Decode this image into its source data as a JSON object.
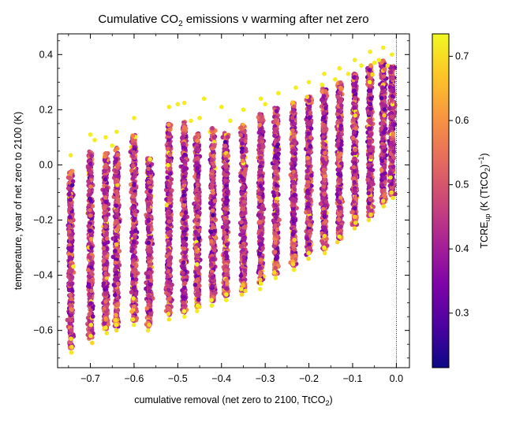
{
  "chart_data": {
    "type": "scatter",
    "title": "Cumulative CO",
    "title_sub": "2",
    "title_rest": " emissions v warming after net zero",
    "xlabel": "cumulative removal (net zero to 2100, TtCO",
    "xlabel_sub": "2",
    "xlabel_end": ")",
    "ylabel": "temperature, year of net zero to 2100 (K)",
    "xlim": [
      -0.775,
      0.03
    ],
    "ylim": [
      -0.735,
      0.475
    ],
    "x_ticks": [
      -0.7,
      -0.6,
      -0.5,
      -0.4,
      -0.3,
      -0.2,
      -0.1,
      0.0
    ],
    "x_tick_labels": [
      "−0.7",
      "−0.6",
      "−0.5",
      "−0.4",
      "−0.3",
      "−0.2",
      "−0.1",
      "0.0"
    ],
    "y_ticks": [
      -0.6,
      -0.4,
      -0.2,
      0.0,
      0.2,
      0.4
    ],
    "y_tick_labels": [
      "−0.6",
      "−0.4",
      "−0.2",
      "0.0",
      "0.2",
      "0.4"
    ],
    "reference_line_x": 0.0,
    "colormap": "plasma",
    "colorbar": {
      "label_main": "TCRE",
      "label_sub": "up",
      "label_rest": " (K (TtCO",
      "label_sub2": "2",
      "label_end": ")",
      "label_sup": "−1",
      "label_close": ")",
      "range": [
        0.215,
        0.735
      ],
      "ticks": [
        0.3,
        0.4,
        0.5,
        0.6,
        0.7
      ],
      "tick_labels": [
        "0.3",
        "0.4",
        "0.5",
        "0.6",
        "0.7"
      ]
    },
    "columns": [
      {
        "x": -0.745,
        "ymin": -0.68,
        "ymax": 0.035,
        "bottom_tail": [
          -0.63,
          -0.66,
          -0.68
        ]
      },
      {
        "x": -0.7,
        "ymin": -0.645,
        "ymax": 0.11,
        "bottom_tail": [
          -0.58,
          -0.62,
          -0.645
        ]
      },
      {
        "x": -0.665,
        "ymin": -0.61,
        "ymax": 0.1
      },
      {
        "x": -0.64,
        "ymin": -0.6,
        "ymax": 0.12
      },
      {
        "x": -0.6,
        "ymin": -0.58,
        "ymax": 0.17
      },
      {
        "x": -0.565,
        "ymin": -0.6,
        "ymax": 0.08
      },
      {
        "x": -0.52,
        "ymin": -0.56,
        "ymax": 0.21
      },
      {
        "x": -0.485,
        "ymin": -0.55,
        "ymax": 0.22
      },
      {
        "x": -0.455,
        "ymin": -0.53,
        "ymax": 0.17
      },
      {
        "x": -0.42,
        "ymin": -0.51,
        "ymax": 0.19
      },
      {
        "x": -0.39,
        "ymin": -0.49,
        "ymax": 0.17
      },
      {
        "x": -0.35,
        "ymin": -0.47,
        "ymax": 0.2
      },
      {
        "x": -0.31,
        "ymin": -0.45,
        "ymax": 0.24
      },
      {
        "x": -0.275,
        "ymin": -0.41,
        "ymax": 0.26
      },
      {
        "x": -0.235,
        "ymin": -0.38,
        "ymax": 0.28
      },
      {
        "x": -0.2,
        "ymin": -0.34,
        "ymax": 0.3
      },
      {
        "x": -0.165,
        "ymin": -0.32,
        "ymax": 0.33
      },
      {
        "x": -0.13,
        "ymin": -0.28,
        "ymax": 0.35
      },
      {
        "x": -0.095,
        "ymin": -0.23,
        "ymax": 0.38
      },
      {
        "x": -0.06,
        "ymin": -0.2,
        "ymax": 0.41
      },
      {
        "x": -0.03,
        "ymin": -0.15,
        "ymax": 0.425
      },
      {
        "x": -0.01,
        "ymin": -0.12,
        "ymax": 0.4
      }
    ],
    "upper_outliers": [
      [
        -0.745,
        0.035
      ],
      [
        -0.7,
        0.11
      ],
      [
        -0.69,
        0.09
      ],
      [
        -0.665,
        0.1
      ],
      [
        -0.65,
        0.07
      ],
      [
        -0.64,
        0.12
      ],
      [
        -0.6,
        0.17
      ],
      [
        -0.52,
        0.21
      ],
      [
        -0.5,
        0.22
      ],
      [
        -0.485,
        0.225
      ],
      [
        -0.47,
        0.16
      ],
      [
        -0.45,
        0.17
      ],
      [
        -0.44,
        0.24
      ],
      [
        -0.4,
        0.21
      ],
      [
        -0.38,
        0.16
      ],
      [
        -0.35,
        0.2
      ],
      [
        -0.31,
        0.24
      ],
      [
        -0.3,
        0.22
      ],
      [
        -0.27,
        0.26
      ],
      [
        -0.23,
        0.28
      ],
      [
        -0.2,
        0.3
      ],
      [
        -0.17,
        0.29
      ],
      [
        -0.165,
        0.33
      ],
      [
        -0.14,
        0.31
      ],
      [
        -0.13,
        0.35
      ],
      [
        -0.11,
        0.33
      ],
      [
        -0.095,
        0.38
      ],
      [
        -0.08,
        0.36
      ],
      [
        -0.06,
        0.41
      ],
      [
        -0.05,
        0.37
      ],
      [
        -0.04,
        0.38
      ],
      [
        -0.03,
        0.425
      ],
      [
        -0.02,
        0.36
      ],
      [
        -0.01,
        0.4
      ]
    ]
  }
}
